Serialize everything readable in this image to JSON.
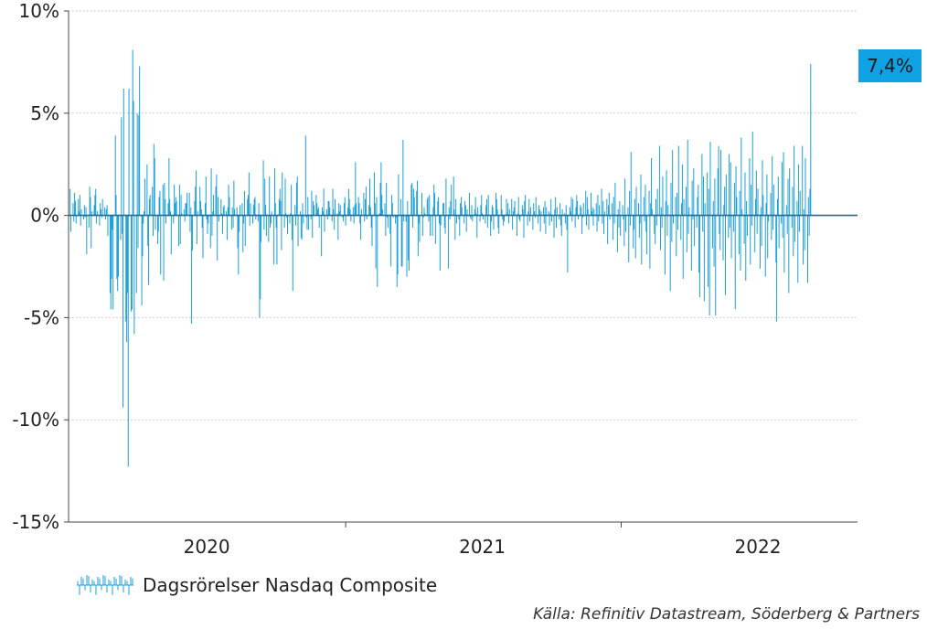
{
  "chart_data": {
    "type": "bar",
    "ylim": [
      -15,
      10
    ],
    "y_ticks": [
      {
        "value": 10,
        "label": "10%"
      },
      {
        "value": 5,
        "label": "5%"
      },
      {
        "value": 0,
        "label": "0%"
      },
      {
        "value": -5,
        "label": "-5%"
      },
      {
        "value": -10,
        "label": "-10%"
      },
      {
        "value": -15,
        "label": "-15%"
      }
    ],
    "x_range": [
      "2019-12-31",
      "2022-11-10"
    ],
    "x_tick_labels": [
      {
        "date": "2020-07-01",
        "label": "2020"
      },
      {
        "date": "2021-07-01",
        "label": "2021"
      },
      {
        "date": "2022-07-01",
        "label": "2022"
      }
    ],
    "x_year_boundaries": [
      "2021-01-01",
      "2022-01-01"
    ],
    "grid": "horizontal-dotted",
    "series": [
      {
        "name": "Dagsrörelser Nasdaq Composite",
        "color": "#1a9fd9",
        "start_date": "2020-01-02",
        "frequency": "business-day",
        "unit": "%",
        "values": [
          1.3,
          -0.8,
          0.6,
          -0.3,
          1.1,
          0.7,
          -0.4,
          0.8,
          0.2,
          1.0,
          -0.5,
          0.3,
          -0.2,
          0.5,
          -0.1,
          0.4,
          -1.9,
          -0.6,
          1.4,
          0.9,
          -1.6,
          0.2,
          0.5,
          1.0,
          1.3,
          -0.4,
          0.2,
          -0.5,
          0.6,
          0.3,
          -0.1,
          0.8,
          0.4,
          -0.2,
          0.3,
          0.5,
          -1.0,
          -3.8,
          -4.6,
          -3.1,
          -0.7,
          -4.6,
          3.9,
          1.0,
          -3.1,
          -3.7,
          -3.0,
          -1.2,
          4.8,
          -0.9,
          -9.4,
          6.2,
          -5.2,
          -6.2,
          -3.8,
          -12.3,
          6.2,
          -4.7,
          -4.6,
          8.1,
          5.6,
          -5.8,
          -3.8,
          5.0,
          -1.6,
          4.9,
          7.3,
          -4.4,
          -2.0,
          -0.4,
          0.2,
          1.8,
          2.5,
          -1.5,
          -3.4,
          0.8,
          1.0,
          1.4,
          -1.0,
          3.5,
          2.8,
          -0.7,
          -1.4,
          -0.8,
          0.9,
          1.2,
          -2.9,
          1.5,
          -3.2,
          1.6,
          0.8,
          -0.4,
          0.6,
          2.8,
          0.8,
          0.2,
          -1.9,
          -0.4,
          1.5,
          0.6,
          0.9,
          0.7,
          -1.5,
          1.5,
          -1.4,
          1.0,
          0.1,
          0.3,
          -0.3,
          0.6,
          0.6,
          1.1,
          1.1,
          -0.8,
          0.4,
          -5.3,
          -1.7,
          0.7,
          1.4,
          2.2,
          -1.4,
          0.2,
          1.4,
          0.7,
          0.3,
          -0.6,
          -2.1,
          0.6,
          1.9,
          -0.2,
          -0.9,
          -0.4,
          -1.6,
          2.3,
          -1.0,
          0.2,
          1.0,
          1.4,
          2.0,
          -2.2,
          0.9,
          -0.3,
          0.8,
          0.1,
          -0.9,
          0.4,
          0.5,
          0.2,
          -1.2,
          0.4,
          1.5,
          0.9,
          -0.7,
          0.4,
          -0.6,
          1.7,
          0.3,
          0.4,
          -1.6,
          -2.9,
          -0.8,
          0.5,
          0.6,
          -1.8,
          -0.4,
          1.2,
          -1.5,
          0.8,
          1.0,
          2.1,
          -0.5,
          0.6,
          -0.4,
          0.5,
          0.8,
          0.9,
          -0.2,
          -0.3,
          0.6,
          -5.0,
          -4.1,
          -1.3,
          2.7,
          -0.7,
          1.8,
          0.5,
          -1.0,
          -1.3,
          1.9,
          -0.6,
          -0.4,
          0.2,
          -2.4,
          2.3,
          0.6,
          -0.6,
          -2.4,
          0.8,
          1.3,
          0.7,
          -1.7,
          2.1,
          -0.6,
          1.8,
          0.1,
          -0.1,
          -0.9,
          -0.4,
          0.1,
          1.5,
          -1.2,
          -3.7,
          0.5,
          -0.5,
          1.6,
          1.9,
          -1.5,
          0.2,
          -1.1,
          -1.2,
          0.6,
          -0.4,
          3.9,
          -0.1,
          -0.7,
          0.9,
          -0.7,
          -0.2,
          1.2,
          -1.1,
          0.7,
          0.5,
          1.0,
          0.6,
          0.3,
          0.4,
          -0.6,
          -2.0,
          0.4,
          0.2,
          1.3,
          -0.8,
          0.3,
          -0.2,
          0.7,
          0.7,
          0.4,
          -0.3,
          1.3,
          0.3,
          -0.7,
          0.8,
          0.1,
          -1.2,
          0.6,
          0.2,
          0.5,
          -0.1,
          -0.3,
          0.6,
          0.9,
          -0.5,
          0.4,
          1.3,
          0.8,
          0.3,
          -0.3,
          0.4,
          -0.4,
          0.5,
          2.6,
          0.6,
          0.9,
          0.6,
          -0.4,
          -1.2,
          0.3,
          1.1,
          -0.3,
          0.8,
          1.4,
          -0.2,
          0.5,
          1.8,
          0.4,
          -0.6,
          -1.5,
          2.1,
          0.6,
          -2.6,
          0.9,
          -3.5,
          0.1,
          1.6,
          2.6,
          1.0,
          0.3,
          0.6,
          -1.0,
          1.6,
          -0.1,
          -0.6,
          -0.9,
          -2.5,
          1.0,
          0.6,
          -0.1,
          -0.4,
          -0.1,
          -3.5,
          -2.9,
          2.0,
          0.8,
          -2.5,
          -2.5,
          3.7,
          -0.3,
          -0.3,
          -3.0,
          0.7,
          -2.2,
          -2.7,
          1.5,
          1.6,
          -0.6,
          1.3,
          0.9,
          1.2,
          1.7,
          -2.0,
          -0.4,
          -1.3,
          1.1,
          -1.0,
          -0.1,
          0.4,
          0.1,
          0.8,
          0.9,
          -0.3,
          1.0,
          -1.0,
          -1.0,
          0.4,
          1.5,
          1.1,
          -1.4,
          0.7,
          0.9,
          -0.4,
          -2.7,
          -0.5,
          0.6,
          0.6,
          -0.6,
          -0.9,
          1.8,
          -2.6,
          0.4,
          -0.2,
          0.7,
          1.5,
          1.9,
          0.3,
          -1.2,
          0.8,
          -0.4,
          -0.2,
          -1.0,
          0.6,
          0.9,
          0.4,
          -0.4,
          0.7,
          0.5,
          -0.8,
          0.3,
          1.1,
          -0.1,
          -0.2,
          0.5,
          -0.3,
          0.3,
          0.9,
          0.1,
          -1.1,
          0.4,
          -0.3,
          0.5,
          1.0,
          0.1,
          -0.2,
          -0.4,
          0.5,
          0.8,
          -0.6,
          1.0,
          -1.0,
          -0.3,
          0.5,
          0.4,
          -0.7,
          1.1,
          0.8,
          0.3,
          -0.6,
          -0.9,
          1.0,
          0.3,
          -0.2,
          -0.5,
          -0.3,
          0.8,
          0.1,
          0.6,
          -0.4,
          0.3,
          0.8,
          -0.7,
          0.2,
          0.4,
          0.7,
          -1.0,
          0.1,
          0.9,
          -0.2,
          -0.3,
          0.5,
          0.3,
          -1.1,
          0.7,
          1.0,
          -0.5,
          0.2,
          0.8,
          -0.3,
          0.4,
          -0.7,
          0.6,
          0.2,
          -0.1,
          0.9,
          -0.4,
          0.5,
          0.3,
          -0.8,
          0.2,
          0.4,
          -0.4,
          0.7,
          -0.9,
          0.4,
          0.2,
          -0.5,
          0.1,
          0.8,
          -0.3,
          -1.1,
          0.3,
          0.9,
          -0.6,
          0.4,
          -0.2,
          0.6,
          -0.5,
          -1.0,
          0.3,
          0.1,
          -0.4,
          0.5,
          -0.7,
          -2.8,
          0.4,
          0.2,
          0.9,
          -0.3,
          0.8,
          -0.6,
          0.4,
          1.0,
          0.7,
          -0.2,
          0.5,
          0.4,
          -0.9,
          -0.1,
          0.6,
          1.2,
          -0.5,
          0.9,
          0.3,
          -0.7,
          1.1,
          0.2,
          0.4,
          -0.5,
          0.3,
          0.6,
          -0.8,
          1.0,
          -0.3,
          0.5,
          1.3,
          -0.4,
          0.7,
          -0.9,
          0.2,
          0.8,
          -1.4,
          0.5,
          1.1,
          -0.2,
          0.6,
          -1.2,
          0.9,
          -0.4,
          1.6,
          -1.8,
          0.3,
          -0.6,
          0.7,
          -1.0,
          0.5,
          -0.2,
          -1.5,
          1.8,
          -0.8,
          0.4,
          -2.3,
          1.2,
          -0.5,
          3.1,
          -1.6,
          -0.7,
          0.8,
          -2.1,
          1.4,
          0.6,
          -1.1,
          -0.4,
          2.0,
          -2.4,
          0.9,
          -0.3,
          1.5,
          -0.8,
          -1.9,
          1.2,
          -2.6,
          0.6,
          2.8,
          0.3,
          -0.9,
          -1.4,
          0.8,
          -0.5,
          1.3,
          3.4,
          -1.7,
          0.4,
          -0.6,
          1.9,
          -2.9,
          0.7,
          2.2,
          -1.0,
          0.5,
          -3.7,
          1.6,
          -1.3,
          3.2,
          -0.4,
          0.9,
          -2.0,
          1.1,
          -0.7,
          3.4,
          -1.2,
          0.6,
          2.5,
          -3.1,
          0.8,
          1.4,
          -1.8,
          3.7,
          -0.9,
          0.4,
          -2.7,
          1.7,
          -0.2,
          2.3,
          -1.5,
          -0.6,
          0.9,
          1.5,
          -2.8,
          -4.0,
          3.0,
          -0.8,
          1.9,
          -4.2,
          0.6,
          2.1,
          -3.5,
          1.3,
          -4.9,
          3.6,
          -1.6,
          0.7,
          -2.5,
          1.8,
          -4.9,
          2.3,
          3.4,
          -0.9,
          -1.7,
          3.2,
          -2.2,
          0.5,
          1.4,
          -3.9,
          2.0,
          -1.1,
          3.0,
          -0.6,
          2.6,
          -2.1,
          -0.8,
          1.6,
          -4.6,
          2.4,
          0.9,
          -1.9,
          1.2,
          -2.7,
          3.8,
          0.3,
          -1.4,
          2.1,
          -3.2,
          0.7,
          -1.0,
          2.8,
          -2.4,
          1.5,
          -0.5,
          4.1,
          -1.8,
          0.8,
          2.2,
          -0.9,
          1.3,
          -2.6,
          0.4,
          -1.5,
          2.7,
          1.0,
          -3.0,
          0.6,
          2.0,
          -2.1,
          -0.3,
          1.1,
          -1.2,
          2.9,
          -0.7,
          1.5,
          -2.3,
          -5.2,
          0.8,
          1.9,
          -1.6,
          -0.4,
          2.6,
          -1.1,
          3.1,
          -2.8,
          0.5,
          -0.9,
          1.8,
          -3.8,
          2.3,
          -0.6,
          1.4,
          -2.0,
          3.4,
          -1.3,
          0.7,
          -3.3,
          2.5,
          -0.8,
          1.2,
          3.4,
          -2.4,
          0.3,
          -1.7,
          2.8,
          -3.3,
          0.9,
          -1.0,
          1.3,
          7.4
        ]
      }
    ],
    "annotations": [
      {
        "label": "7,4%",
        "series_last_value": 7.4,
        "background": "#0ea1e4"
      }
    ],
    "legend": {
      "placement": "bottom-left",
      "label": "Dagsrörelser Nasdaq Composite"
    }
  },
  "source_text": "Källa: Refinitiv Datastream, Söderberg & Partners",
  "callout_label": "7,4%",
  "colors": {
    "bar": "#1a9fd9",
    "axis": "#4a4a4a",
    "grid": "#bdbdbd",
    "callout": "#0ea1e4"
  }
}
